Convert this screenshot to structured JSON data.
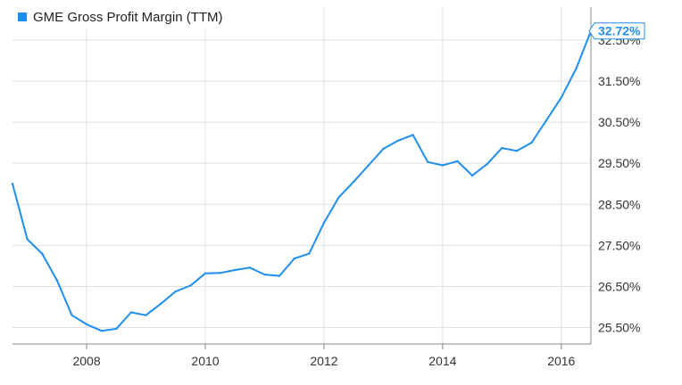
{
  "chart_data": {
    "type": "line",
    "legend": {
      "label": "GME Gross Profit Margin (TTM)",
      "position": "top-left"
    },
    "series": [
      {
        "name": "GME Gross Profit Margin (TTM)",
        "color": "#1f8ef1",
        "points": [
          [
            "2006-10",
            29.0
          ],
          [
            "2007-01",
            27.65
          ],
          [
            "2007-04",
            27.3
          ],
          [
            "2007-07",
            26.65
          ],
          [
            "2007-10",
            25.8
          ],
          [
            "2008-01",
            25.58
          ],
          [
            "2008-04",
            25.42
          ],
          [
            "2008-07",
            25.47
          ],
          [
            "2008-10",
            25.87
          ],
          [
            "2009-01",
            25.8
          ],
          [
            "2009-04",
            26.08
          ],
          [
            "2009-07",
            26.38
          ],
          [
            "2009-10",
            26.52
          ],
          [
            "2010-01",
            26.82
          ],
          [
            "2010-04",
            26.83
          ],
          [
            "2010-07",
            26.9
          ],
          [
            "2010-10",
            26.96
          ],
          [
            "2011-01",
            26.79
          ],
          [
            "2011-04",
            26.76
          ],
          [
            "2011-07",
            27.18
          ],
          [
            "2011-10",
            27.3
          ],
          [
            "2012-01",
            28.05
          ],
          [
            "2012-04",
            28.67
          ],
          [
            "2012-07",
            29.05
          ],
          [
            "2012-10",
            29.45
          ],
          [
            "2013-01",
            29.85
          ],
          [
            "2013-04",
            30.05
          ],
          [
            "2013-07",
            30.19
          ],
          [
            "2013-10",
            29.53
          ],
          [
            "2014-01",
            29.45
          ],
          [
            "2014-04",
            29.55
          ],
          [
            "2014-07",
            29.2
          ],
          [
            "2014-10",
            29.48
          ],
          [
            "2015-01",
            29.87
          ],
          [
            "2015-04",
            29.8
          ],
          [
            "2015-07",
            30.0
          ],
          [
            "2015-10",
            30.55
          ],
          [
            "2016-01",
            31.1
          ],
          [
            "2016-04",
            31.8
          ],
          [
            "2016-07",
            32.72
          ]
        ]
      }
    ],
    "end_label": "32.72%",
    "x_axis": {
      "ticks": [
        "2008",
        "2010",
        "2012",
        "2014",
        "2016"
      ],
      "range": [
        "2006-10",
        "2016-07"
      ]
    },
    "y_axis": {
      "ticks": [
        "25.50%",
        "26.50%",
        "27.50%",
        "28.50%",
        "29.50%",
        "30.50%",
        "31.50%",
        "32.50%"
      ],
      "tick_values": [
        25.5,
        26.5,
        27.5,
        28.5,
        29.5,
        30.5,
        31.5,
        32.5
      ],
      "range": [
        25.1,
        33.3
      ],
      "position": "right"
    },
    "grid": true,
    "colors": {
      "line": "#1f8ef1",
      "grid": "#e0e0e0",
      "axis": "#888888"
    }
  }
}
